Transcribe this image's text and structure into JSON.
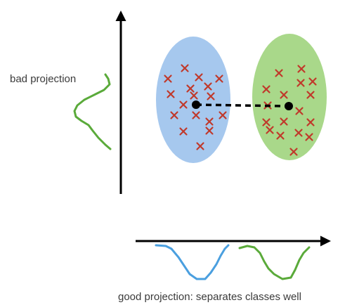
{
  "labels": {
    "bad_projection": "bad projection",
    "good_projection": "good projection: separates classes well"
  },
  "colors": {
    "class_a_fill": "#a6c8ee",
    "class_b_fill": "#a9d88a",
    "marker": "#c0392b",
    "mean_point": "#000000",
    "blue_curve": "#4a9fdf",
    "green_curve": "#5aaa3a",
    "axis": "#000000"
  },
  "classes": [
    {
      "name": "",
      "marker": "x",
      "fill_color": "#a6c8ee",
      "curve_color": "#4a9fdf",
      "marker_count": 17
    },
    {
      "name": "",
      "marker": "x",
      "fill_color": "#a9d88a",
      "curve_color": "#5aaa3a",
      "marker_count": 17
    }
  ],
  "icons": {
    "marker": "x-marker-icon",
    "mean": "mean-dot-icon",
    "arrow": "arrow-head-icon"
  }
}
